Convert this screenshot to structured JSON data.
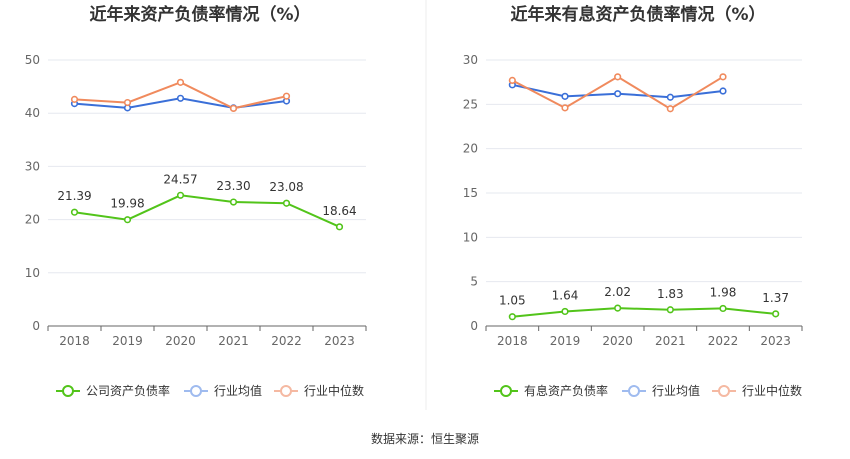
{
  "source_text": "数据来源：恒生聚源",
  "chart_data": [
    {
      "type": "line",
      "title": "近年来资产负债率情况（%）",
      "categories": [
        "2018",
        "2019",
        "2020",
        "2021",
        "2022",
        "2023"
      ],
      "ylim": [
        0,
        50
      ],
      "yticks": [
        "0",
        "10",
        "20",
        "30",
        "40",
        "50"
      ],
      "grid": true,
      "legend_position": "bottom",
      "series": [
        {
          "name": "公司资产负债率",
          "color": "#52c41a",
          "values": [
            21.39,
            19.98,
            24.57,
            23.3,
            23.08,
            18.64
          ],
          "labels": [
            "21.39",
            "19.98",
            "24.57",
            "23.30",
            "23.08",
            "18.64"
          ]
        },
        {
          "name": "行业均值",
          "color": "#3a6fd8",
          "values": [
            41.8,
            41.0,
            42.8,
            41.0,
            42.3,
            null
          ]
        },
        {
          "name": "行业中位数",
          "color": "#f08a5d",
          "values": [
            42.6,
            42.0,
            45.8,
            40.9,
            43.2,
            null
          ]
        }
      ]
    },
    {
      "type": "line",
      "title": "近年来有息资产负债率情况（%）",
      "categories": [
        "2018",
        "2019",
        "2020",
        "2021",
        "2022",
        "2023"
      ],
      "ylim": [
        0,
        30
      ],
      "yticks": [
        "0",
        "5",
        "10",
        "15",
        "20",
        "25",
        "30"
      ],
      "grid": true,
      "legend_position": "bottom",
      "series": [
        {
          "name": "有息资产负债率",
          "color": "#52c41a",
          "values": [
            1.05,
            1.64,
            2.02,
            1.83,
            1.98,
            1.37
          ],
          "labels": [
            "1.05",
            "1.64",
            "2.02",
            "1.83",
            "1.98",
            "1.37"
          ]
        },
        {
          "name": "行业均值",
          "color": "#3a6fd8",
          "values": [
            27.2,
            25.9,
            26.2,
            25.8,
            26.5,
            null
          ]
        },
        {
          "name": "行业中位数",
          "color": "#f08a5d",
          "values": [
            27.7,
            24.6,
            28.1,
            24.5,
            28.1,
            null
          ]
        }
      ]
    }
  ]
}
